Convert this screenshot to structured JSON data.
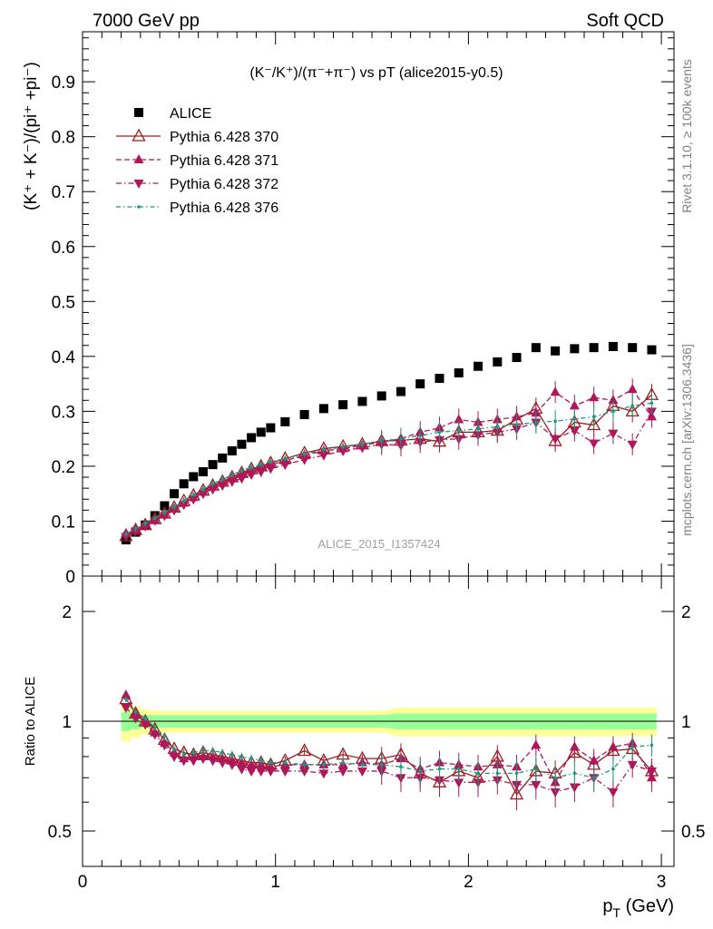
{
  "header": {
    "left_label": "7000 GeV pp",
    "right_label": "Soft QCD"
  },
  "plot_title": "(K⁻/K⁺)/(π⁻+π⁻) vs pT (alice2015-y0.5)",
  "watermark": "ALICE_2015_I1357424",
  "side_labels": {
    "rivet": "Rivet 3.1.10, ≥ 100k events",
    "mcplots": "mcplots.cern.ch [arXiv:1306.3436]"
  },
  "legend": [
    {
      "label": "ALICE"
    },
    {
      "label": "Pythia 6.428 370"
    },
    {
      "label": "Pythia 6.428 371"
    },
    {
      "label": "Pythia 6.428 372"
    },
    {
      "label": "Pythia 6.428 376"
    }
  ],
  "colors": {
    "data": "#000000",
    "p370": "#9b1c1c",
    "p371": "#b0165a",
    "p372": "#b0165a",
    "p376": "#1a9a80",
    "band_inner": "#99ff99",
    "band_outer": "#ffff99"
  },
  "chart_data": [
    {
      "type": "scatter",
      "panel": "main",
      "ylabel": "(K⁺ + K⁻)/(pi⁺ +pi⁻)",
      "xlabel": "p_T (GeV)",
      "xlim": [
        0,
        3.05
      ],
      "ylim": [
        0,
        1.0
      ],
      "y_ticks": [
        "0",
        "0.1",
        "0.2",
        "0.3",
        "0.4",
        "0.5",
        "0.6",
        "0.7",
        "0.8",
        "0.9"
      ],
      "x_ticks": [
        "0",
        "1",
        "2",
        "3"
      ],
      "x": [
        0.225,
        0.275,
        0.325,
        0.375,
        0.425,
        0.475,
        0.525,
        0.575,
        0.625,
        0.675,
        0.725,
        0.775,
        0.825,
        0.875,
        0.925,
        0.975,
        1.05,
        1.15,
        1.25,
        1.35,
        1.45,
        1.55,
        1.65,
        1.75,
        1.85,
        1.95,
        2.05,
        2.15,
        2.25,
        2.35,
        2.45,
        2.55,
        2.65,
        2.75,
        2.85,
        2.95
      ],
      "series": [
        {
          "name": "ALICE",
          "marker": "square",
          "values": [
            0.066,
            0.08,
            0.093,
            0.11,
            0.128,
            0.15,
            0.168,
            0.181,
            0.19,
            0.203,
            0.215,
            0.228,
            0.24,
            0.252,
            0.262,
            0.27,
            0.281,
            0.294,
            0.305,
            0.312,
            0.318,
            0.328,
            0.336,
            0.35,
            0.36,
            0.37,
            0.382,
            0.39,
            0.398,
            0.416,
            0.41,
            0.414,
            0.416,
            0.418,
            0.416,
            0.412
          ]
        },
        {
          "name": "Pythia 6.428 370",
          "marker": "open-triangle-up",
          "values": [
            0.073,
            0.084,
            0.093,
            0.104,
            0.114,
            0.125,
            0.137,
            0.147,
            0.156,
            0.165,
            0.172,
            0.18,
            0.188,
            0.195,
            0.2,
            0.206,
            0.214,
            0.224,
            0.232,
            0.236,
            0.24,
            0.246,
            0.247,
            0.25,
            0.245,
            0.262,
            0.262,
            0.265,
            0.285,
            0.305,
            0.246,
            0.28,
            0.275,
            0.31,
            0.3,
            0.33
          ]
        },
        {
          "name": "Pythia 6.428 371",
          "marker": "filled-triangle-up",
          "values": [
            0.078,
            0.084,
            0.093,
            0.102,
            0.112,
            0.123,
            0.133,
            0.143,
            0.153,
            0.162,
            0.17,
            0.178,
            0.186,
            0.192,
            0.198,
            0.203,
            0.21,
            0.22,
            0.228,
            0.232,
            0.238,
            0.244,
            0.25,
            0.262,
            0.27,
            0.285,
            0.28,
            0.285,
            0.29,
            0.297,
            0.335,
            0.31,
            0.325,
            0.32,
            0.34,
            0.29
          ]
        },
        {
          "name": "Pythia 6.428 372",
          "marker": "filled-triangle-down",
          "values": [
            0.072,
            0.082,
            0.091,
            0.101,
            0.11,
            0.12,
            0.13,
            0.14,
            0.15,
            0.158,
            0.165,
            0.172,
            0.178,
            0.185,
            0.19,
            0.196,
            0.203,
            0.212,
            0.22,
            0.228,
            0.234,
            0.24,
            0.238,
            0.244,
            0.248,
            0.25,
            0.257,
            0.262,
            0.268,
            0.28,
            0.25,
            0.265,
            0.242,
            0.26,
            0.24,
            0.3
          ]
        },
        {
          "name": "Pythia 6.428 376",
          "marker": "small-circle",
          "values": [
            0.076,
            0.086,
            0.096,
            0.106,
            0.116,
            0.126,
            0.137,
            0.148,
            0.158,
            0.168,
            0.176,
            0.184,
            0.192,
            0.198,
            0.203,
            0.208,
            0.214,
            0.222,
            0.23,
            0.235,
            0.24,
            0.246,
            0.25,
            0.256,
            0.262,
            0.265,
            0.268,
            0.272,
            0.276,
            0.28,
            0.282,
            0.286,
            0.29,
            0.3,
            0.31,
            0.315
          ]
        }
      ]
    },
    {
      "type": "scatter",
      "panel": "ratio",
      "ylabel": "Ratio to ALICE",
      "xlabel": "p_T (GeV)",
      "xlim": [
        0,
        3.05
      ],
      "ylim": [
        0.3,
        2.35
      ],
      "y_ticks": [
        "0.5",
        "1",
        "2"
      ],
      "x_ticks": [
        "0",
        "1",
        "2",
        "3"
      ],
      "x": [
        0.225,
        0.275,
        0.325,
        0.375,
        0.425,
        0.475,
        0.525,
        0.575,
        0.625,
        0.675,
        0.725,
        0.775,
        0.825,
        0.875,
        0.925,
        0.975,
        1.05,
        1.15,
        1.25,
        1.35,
        1.45,
        1.55,
        1.65,
        1.75,
        1.85,
        1.95,
        2.05,
        2.15,
        2.25,
        2.35,
        2.45,
        2.55,
        2.65,
        2.75,
        2.85,
        2.95
      ],
      "band_inner": [
        0.94,
        0.95,
        0.96,
        0.96,
        0.96,
        0.96,
        0.96,
        0.96,
        0.96,
        0.96,
        0.96,
        0.96,
        0.96,
        0.96,
        0.96,
        0.96,
        0.96,
        0.96,
        0.96,
        0.96,
        0.96,
        0.96,
        0.95,
        0.95,
        0.95,
        0.95,
        0.95,
        0.95,
        0.95,
        0.95,
        0.95,
        0.95,
        0.95,
        0.95,
        0.95,
        0.95
      ],
      "band_outer": [
        0.88,
        0.9,
        0.92,
        0.93,
        0.93,
        0.93,
        0.93,
        0.93,
        0.93,
        0.93,
        0.93,
        0.93,
        0.93,
        0.93,
        0.93,
        0.93,
        0.93,
        0.93,
        0.93,
        0.93,
        0.93,
        0.93,
        0.91,
        0.91,
        0.91,
        0.91,
        0.91,
        0.91,
        0.91,
        0.91,
        0.91,
        0.91,
        0.91,
        0.91,
        0.91,
        0.91
      ],
      "series": [
        {
          "name": "Pythia 6.428 370",
          "values": [
            1.15,
            1.05,
            1.0,
            0.95,
            0.89,
            0.84,
            0.82,
            0.81,
            0.82,
            0.81,
            0.8,
            0.79,
            0.78,
            0.77,
            0.77,
            0.76,
            0.78,
            0.83,
            0.78,
            0.81,
            0.79,
            0.79,
            0.81,
            0.72,
            0.68,
            0.73,
            0.7,
            0.8,
            0.63,
            0.73,
            0.72,
            0.82,
            0.76,
            0.83,
            0.84,
            0.73
          ]
        },
        {
          "name": "Pythia 6.428 371",
          "values": [
            1.18,
            1.05,
            0.99,
            0.93,
            0.87,
            0.82,
            0.79,
            0.8,
            0.8,
            0.8,
            0.79,
            0.78,
            0.77,
            0.76,
            0.76,
            0.75,
            0.76,
            0.76,
            0.76,
            0.76,
            0.77,
            0.76,
            0.79,
            0.74,
            0.77,
            0.76,
            0.75,
            0.76,
            0.75,
            0.86,
            0.68,
            0.85,
            0.78,
            0.85,
            0.87,
            0.7
          ]
        },
        {
          "name": "Pythia 6.428 372",
          "values": [
            1.09,
            1.02,
            0.98,
            0.92,
            0.86,
            0.8,
            0.78,
            0.78,
            0.79,
            0.78,
            0.77,
            0.76,
            0.74,
            0.73,
            0.73,
            0.73,
            0.73,
            0.73,
            0.72,
            0.73,
            0.73,
            0.73,
            0.7,
            0.7,
            0.69,
            0.68,
            0.68,
            0.69,
            0.67,
            0.67,
            0.64,
            0.66,
            0.7,
            0.64,
            0.76,
            0.73
          ]
        },
        {
          "name": "Pythia 6.428 376",
          "values": [
            1.15,
            1.06,
            1.02,
            0.96,
            0.91,
            0.84,
            0.81,
            0.82,
            0.83,
            0.83,
            0.82,
            0.81,
            0.8,
            0.79,
            0.78,
            0.77,
            0.77,
            0.76,
            0.76,
            0.77,
            0.76,
            0.76,
            0.75,
            0.73,
            0.74,
            0.74,
            0.72,
            0.72,
            0.72,
            0.74,
            0.7,
            0.72,
            0.7,
            0.74,
            0.85,
            0.86
          ]
        }
      ]
    }
  ]
}
